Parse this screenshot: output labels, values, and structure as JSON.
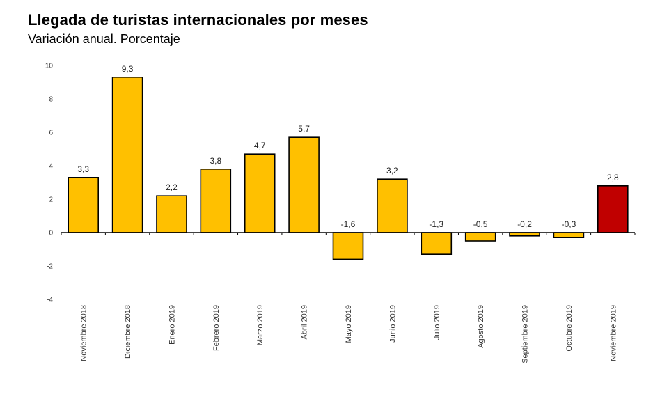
{
  "chart_data": {
    "type": "bar",
    "title": "Llegada de turistas internacionales por meses",
    "subtitle": "Variación anual. Porcentaje",
    "xlabel": "",
    "ylabel": "",
    "ylim": [
      -4,
      10
    ],
    "yticks": [
      10,
      8,
      6,
      4,
      2,
      0,
      -2,
      -4
    ],
    "categories": [
      "Noviembre 2018",
      "Diciembre 2018",
      "Enero 2019",
      "Febrero 2019",
      "Marzo 2019",
      "Abril 2019",
      "Mayo 2019",
      "Junio 2019",
      "Julio 2019",
      "Agosto 2019",
      "Septiembre 2019",
      "Octubre 2019",
      "Noviembre 2019"
    ],
    "values": [
      3.3,
      9.3,
      2.2,
      3.8,
      4.7,
      5.7,
      -1.6,
      3.2,
      -1.3,
      -0.5,
      -0.2,
      -0.3,
      2.8
    ],
    "data_labels": [
      "3,3",
      "9,3",
      "2,2",
      "3,8",
      "4,7",
      "5,7",
      "-1,6",
      "3,2",
      "-1,3",
      "-0,5",
      "-0,2",
      "-0,3",
      "2,8"
    ],
    "colors": {
      "bar": "#FFC000",
      "highlight": "#C00000",
      "bar_border": "#000000",
      "axis": "#000000"
    },
    "highlight_index": 12,
    "grid": false,
    "legend": "none"
  }
}
